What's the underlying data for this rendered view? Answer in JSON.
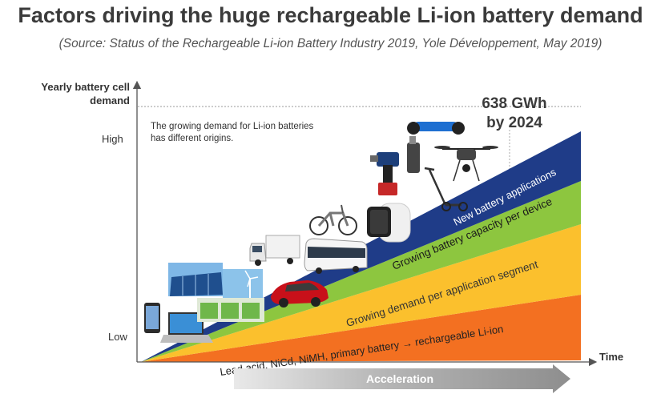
{
  "header": {
    "title": "Factors driving the huge rechargeable Li-ion battery demand",
    "subtitle": "(Source: Status of the Rechargeable Li-ion Battery Industry 2019, Yole Développement, May 2019)"
  },
  "axes": {
    "y_label_line1": "Yearly battery cell",
    "y_label_line2": "demand",
    "high": "High",
    "low": "Low",
    "x_label": "Time"
  },
  "note": {
    "line1": "The growing demand for Li-ion batteries",
    "line2": "has different origins."
  },
  "callout": {
    "line1": "638 GWh",
    "line2": "by 2024"
  },
  "bands": [
    {
      "label": "Lead acid, NiCd, NiMH, primary battery → rechargeable Li-ion",
      "color": "#f37021"
    },
    {
      "label": "Growing demand per application segment",
      "color": "#fbc02d"
    },
    {
      "label": "Growing battery capacity per device",
      "color": "#8dc63f"
    },
    {
      "label": "New battery applications",
      "color": "#1f3c88"
    }
  ],
  "arrow": {
    "label": "Acceleration"
  },
  "icons": [
    "smartphone-icon",
    "laptop-icon",
    "solar-panel-icon",
    "wind-turbine-icon",
    "energy-storage-icon",
    "electric-car-icon",
    "truck-icon",
    "bus-icon",
    "e-bike-icon",
    "smartwatch-icon",
    "power-drill-icon",
    "e-cigarette-icon",
    "e-scooter-icon",
    "hoverboard-icon",
    "drone-icon"
  ]
}
